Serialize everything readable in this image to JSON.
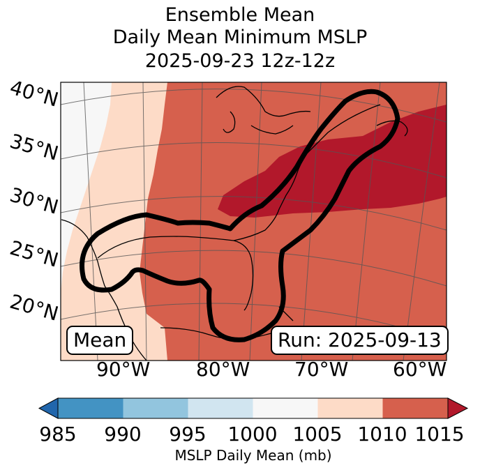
{
  "title": {
    "line1": "Ensemble Mean",
    "line2": "Daily Mean Minimum MSLP",
    "line3": "2025-09-23 12z-12z"
  },
  "lat_labels": [
    "40°N",
    "35°N",
    "30°N",
    "25°N",
    "20°N"
  ],
  "lon_labels": [
    "90°W",
    "80°W",
    "70°W",
    "60°W"
  ],
  "insets": {
    "left": "Mean",
    "right": "Run: 2025-09-13"
  },
  "colorbar": {
    "label": "MSLP Daily Mean (mb)",
    "ticks": [
      "985",
      "990",
      "995",
      "1000",
      "1005",
      "1010",
      "1015"
    ],
    "bins": [
      {
        "range": "985-990",
        "color": "#4393c3"
      },
      {
        "range": "990-995",
        "color": "#92c5de"
      },
      {
        "range": "995-1000",
        "color": "#d1e5f0"
      },
      {
        "range": "1000-1005",
        "color": "#f7f7f7"
      },
      {
        "range": "1005-1010",
        "color": "#fddbc7"
      },
      {
        "range": "1010-1015",
        "color": "#d6604d"
      }
    ],
    "under_color": "#2166ac",
    "over_color": "#b2182b"
  }
}
